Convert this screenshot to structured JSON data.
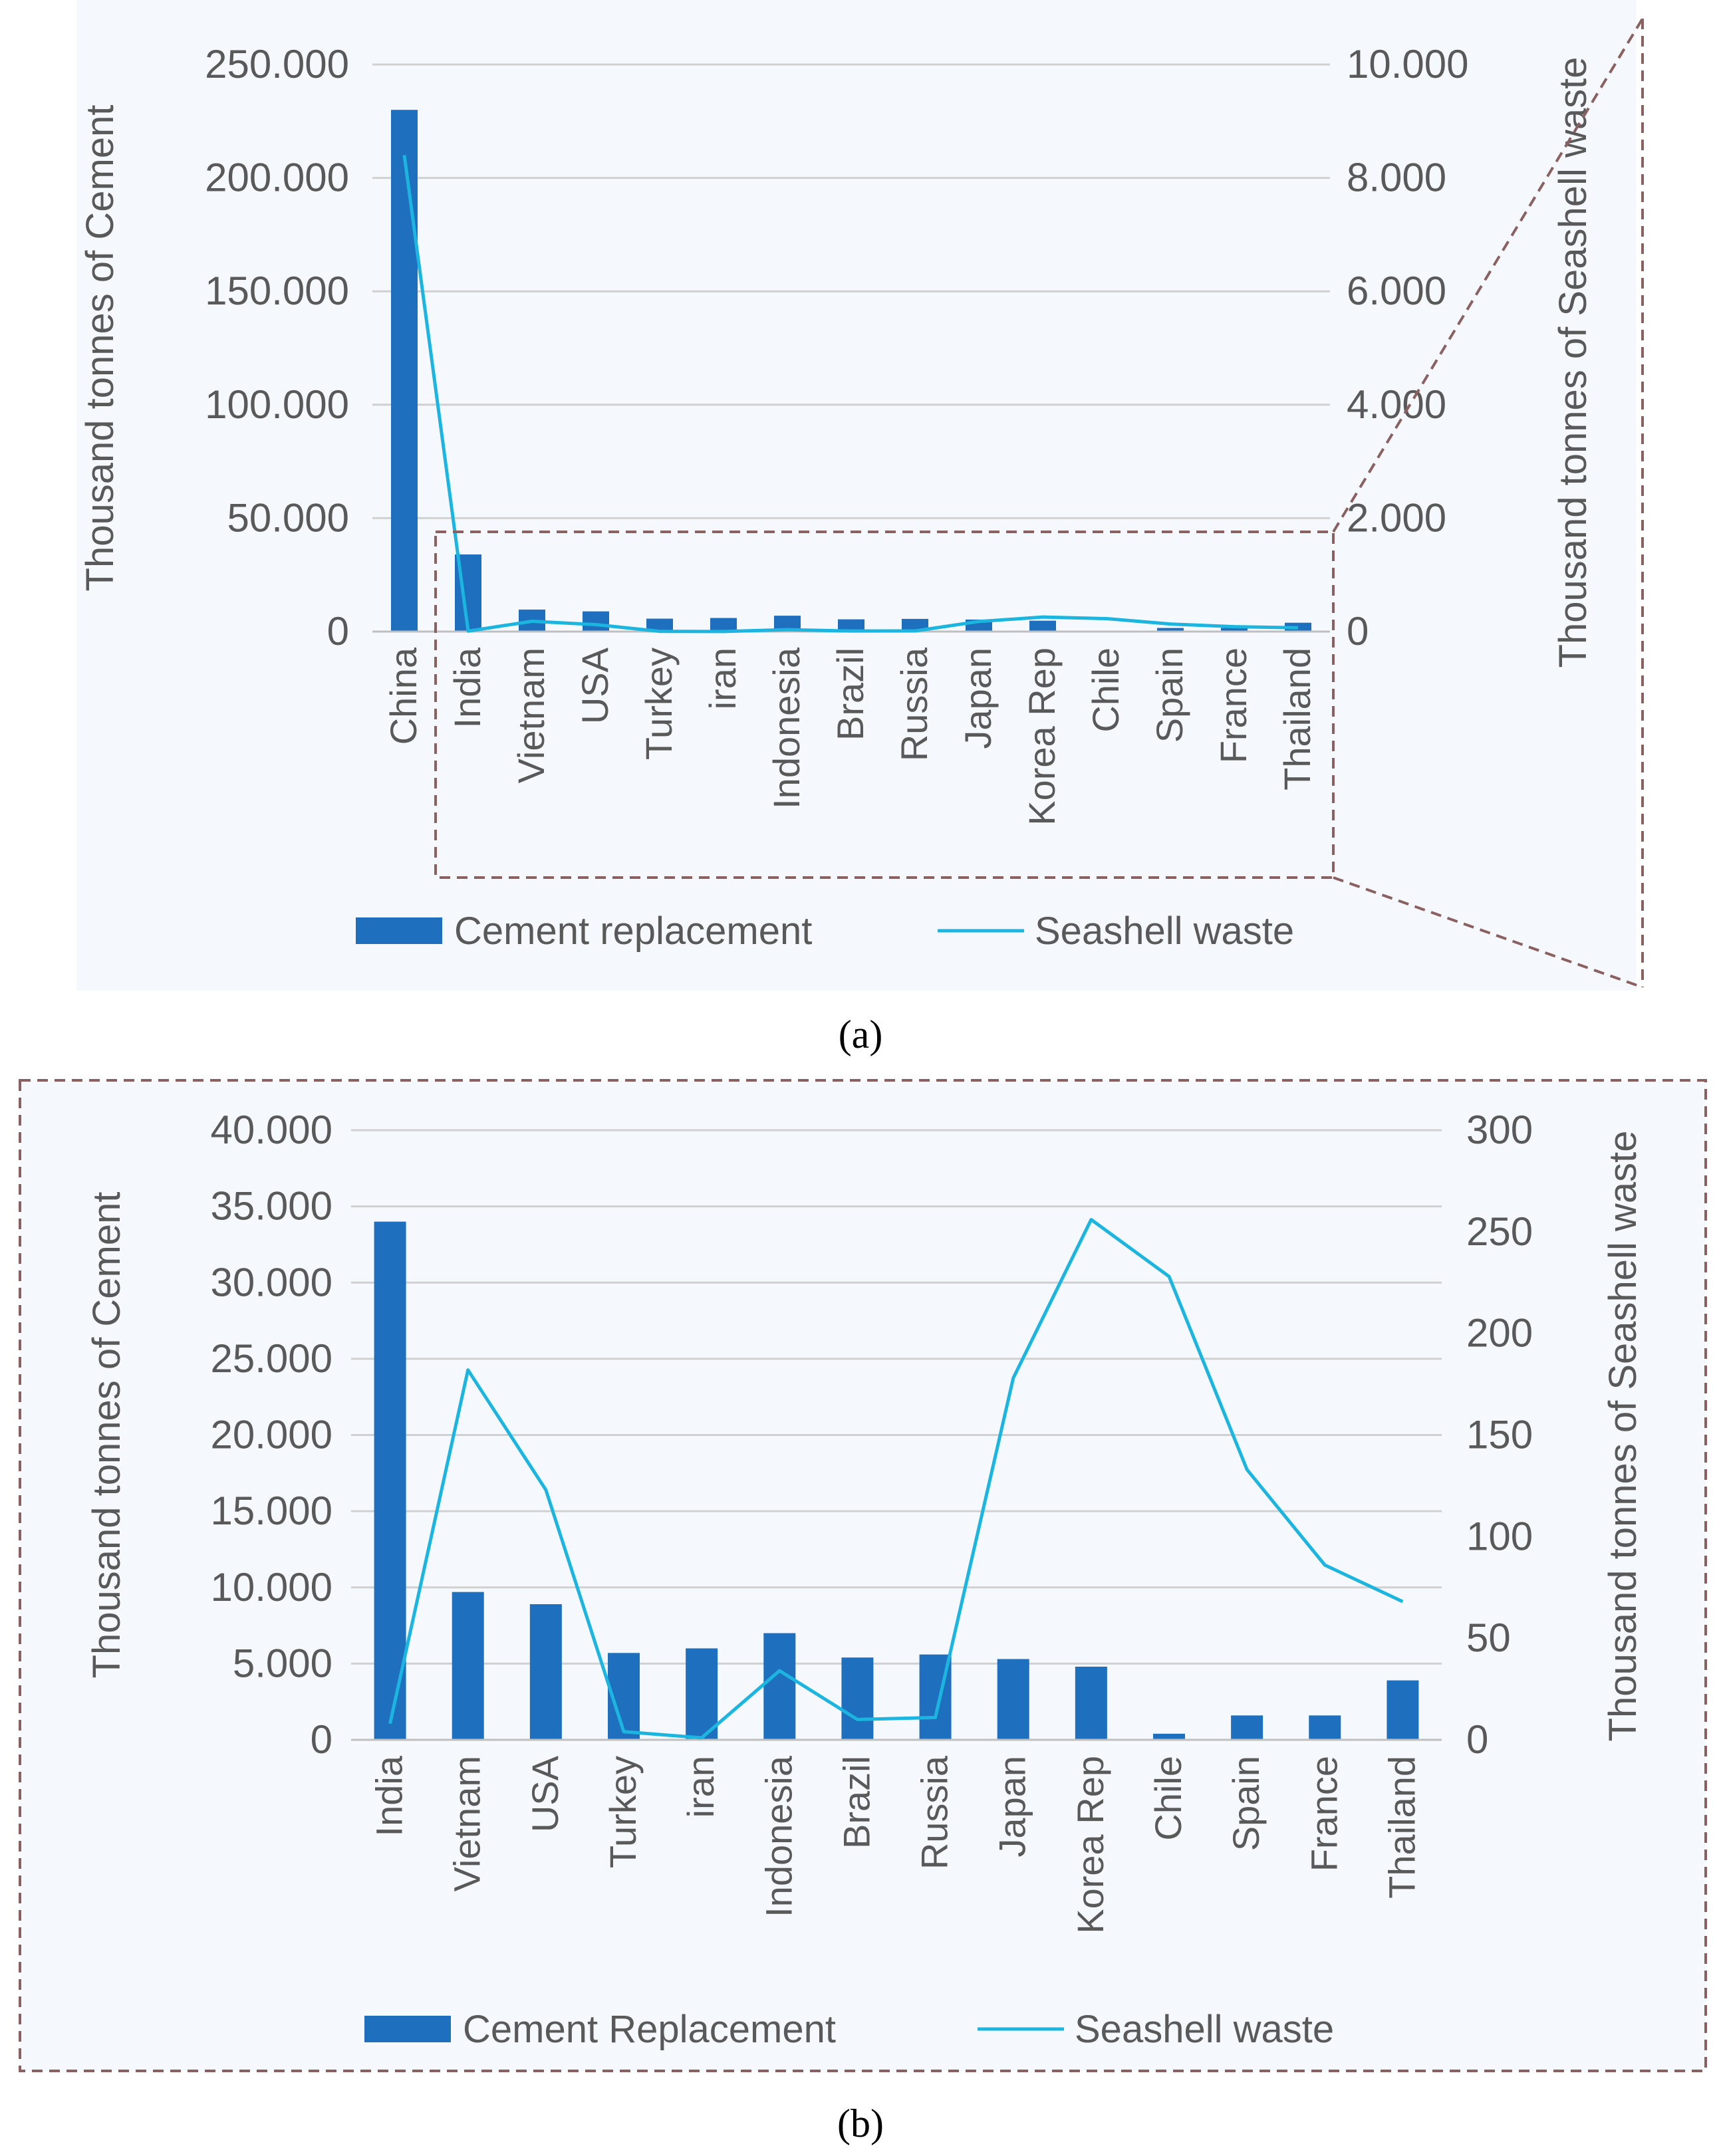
{
  "colors": {
    "bar": "#1f6fbf",
    "line": "#1cb5e0",
    "grid": "#d0d0d0",
    "text": "#595959",
    "panel_bg": "#f5f9fd",
    "dash": "#8a6060"
  },
  "chart_data": [
    {
      "type": "bar",
      "panel_label": "(a)",
      "categories": [
        "China",
        "India",
        "Vietnam",
        "USA",
        "Turkey",
        "iran",
        "Indonesia",
        "Brazil",
        "Russia",
        "Japan",
        "Korea Rep",
        "Chile",
        "Spain",
        "France",
        "Thailand"
      ],
      "series": [
        {
          "name": "Cement replacement",
          "type": "bar",
          "axis": "left",
          "values": [
            230000,
            34000,
            9700,
            8900,
            5700,
            6000,
            7000,
            5400,
            5600,
            5300,
            4800,
            400,
            1600,
            1600,
            3900
          ]
        },
        {
          "name": "Seashell waste",
          "type": "line",
          "axis": "right",
          "values": [
            8400,
            8,
            182,
            123,
            4,
            1,
            34,
            10,
            11,
            178,
            256,
            228,
            133,
            86,
            68
          ]
        }
      ],
      "ylabel_left": "Thousand tonnes of Cement",
      "ylabel_right": "Thousand tonnes of Seashell waste",
      "ylim_left": [
        0,
        250000
      ],
      "ylim_right": [
        0,
        10000
      ],
      "yticks_left": [
        "0",
        "50.000",
        "100.000",
        "150.000",
        "200.000",
        "250.000"
      ],
      "yticks_right": [
        "0",
        "2.000",
        "4.000",
        "6.000",
        "8.000",
        "10.000"
      ],
      "legend": [
        "Cement replacement",
        "Seashell waste"
      ],
      "grid": true
    },
    {
      "type": "bar",
      "panel_label": "(b)",
      "categories": [
        "India",
        "Vietnam",
        "USA",
        "Turkey",
        "iran",
        "Indonesia",
        "Brazil",
        "Russia",
        "Japan",
        "Korea Rep",
        "Chile",
        "Spain",
        "France",
        "Thailand"
      ],
      "series": [
        {
          "name": "Cement Replacement",
          "type": "bar",
          "axis": "left",
          "values": [
            34000,
            9700,
            8900,
            5700,
            6000,
            7000,
            5400,
            5600,
            5300,
            4800,
            400,
            1600,
            1600,
            3900
          ]
        },
        {
          "name": "Seashell waste",
          "type": "line",
          "axis": "right",
          "values": [
            8,
            182,
            123,
            4,
            1,
            34,
            10,
            11,
            178,
            256,
            228,
            133,
            86,
            68
          ]
        }
      ],
      "ylabel_left": "Thousand tonnes of Cement",
      "ylabel_right": "Thousand tonnes of Seashell waste",
      "ylim_left": [
        0,
        40000
      ],
      "ylim_right": [
        0,
        300
      ],
      "yticks_left": [
        "0",
        "5.000",
        "10.000",
        "15.000",
        "20.000",
        "25.000",
        "30.000",
        "35.000",
        "40.000"
      ],
      "yticks_right": [
        "0",
        "50",
        "100",
        "150",
        "200",
        "250",
        "300"
      ],
      "legend": [
        "Cement Replacement",
        "Seashell waste"
      ],
      "grid": true
    }
  ]
}
